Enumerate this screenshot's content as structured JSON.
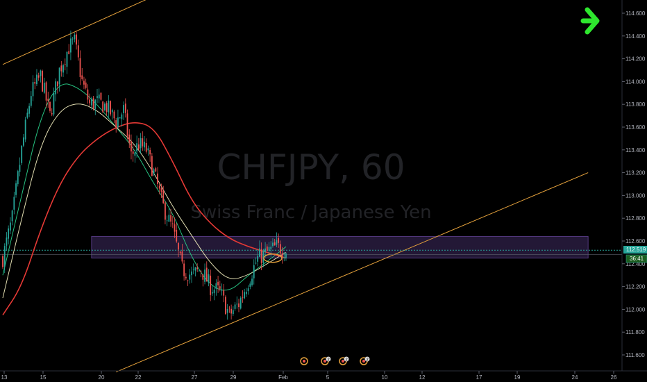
{
  "watermark": {
    "symbol": "CHFJPY, 60",
    "description": "Swiss Franc / Japanese Yen"
  },
  "price_badge": {
    "price": "112.519",
    "countdown": "36:41"
  },
  "colors": {
    "background": "#000000",
    "bull": "#26a69a",
    "bear": "#ef5350",
    "ma_fast": "#26c281",
    "ma_mid": "#e0dcb0",
    "ma_slow": "#e53935",
    "trend_lines": "#e6a23c",
    "zone": "#7e57c2",
    "price_line": "#26a69a",
    "arrow": "#2ee62e"
  },
  "icons": [
    "green-arrow-right-icon",
    "earnings-event-icon"
  ],
  "chart_data": {
    "type": "candlestick",
    "title": "CHFJPY, 60",
    "subtitle": "Swiss Franc / Japanese Yen",
    "ylim": [
      111.5,
      114.7
    ],
    "y_ticks": [
      "111.600",
      "111.800",
      "112.000",
      "112.200",
      "112.400",
      "112.600",
      "112.800",
      "113.000",
      "113.200",
      "113.400",
      "113.600",
      "113.800",
      "114.000",
      "114.200",
      "114.400",
      "114.600"
    ],
    "x_ticks": [
      "13",
      "15",
      "20",
      "22",
      "27",
      "29",
      "Feb",
      "5",
      "10",
      "12",
      "17",
      "19",
      "24",
      "26"
    ],
    "last_price": 112.519,
    "grid": false,
    "anchors": [
      [
        0,
        112.45
      ],
      [
        5,
        112.8
      ],
      [
        10,
        113.4
      ],
      [
        15,
        113.9
      ],
      [
        20,
        114.05
      ],
      [
        25,
        113.7
      ],
      [
        30,
        114.1
      ],
      [
        35,
        114.3
      ],
      [
        38,
        114.35
      ],
      [
        42,
        114.0
      ],
      [
        46,
        113.8
      ],
      [
        50,
        113.82
      ],
      [
        55,
        113.78
      ],
      [
        60,
        113.65
      ],
      [
        64,
        113.75
      ],
      [
        68,
        113.35
      ],
      [
        72,
        113.45
      ],
      [
        76,
        113.4
      ],
      [
        80,
        113.2
      ],
      [
        85,
        112.9
      ],
      [
        90,
        112.7
      ],
      [
        95,
        112.35
      ],
      [
        100,
        112.3
      ],
      [
        105,
        112.35
      ],
      [
        110,
        112.2
      ],
      [
        115,
        112.15
      ],
      [
        120,
        111.95
      ],
      [
        125,
        112.05
      ],
      [
        130,
        112.25
      ],
      [
        135,
        112.45
      ],
      [
        140,
        112.5
      ],
      [
        145,
        112.55
      ],
      [
        150,
        112.52
      ]
    ],
    "moving_averages": [
      {
        "color": "ma_fast",
        "points": [
          [
            0,
            112.3
          ],
          [
            10,
            113.0
          ],
          [
            20,
            113.7
          ],
          [
            30,
            114.0
          ],
          [
            40,
            113.95
          ],
          [
            50,
            113.8
          ],
          [
            60,
            113.6
          ],
          [
            70,
            113.4
          ],
          [
            80,
            113.1
          ],
          [
            90,
            112.85
          ],
          [
            100,
            112.45
          ],
          [
            110,
            112.2
          ],
          [
            120,
            112.15
          ],
          [
            130,
            112.3
          ],
          [
            140,
            112.42
          ],
          [
            150,
            112.55
          ]
        ]
      },
      {
        "color": "ma_mid",
        "points": [
          [
            0,
            112.1
          ],
          [
            10,
            112.8
          ],
          [
            20,
            113.45
          ],
          [
            30,
            113.75
          ],
          [
            40,
            113.82
          ],
          [
            50,
            113.75
          ],
          [
            60,
            113.6
          ],
          [
            70,
            113.45
          ],
          [
            80,
            113.2
          ],
          [
            90,
            112.9
          ],
          [
            100,
            112.65
          ],
          [
            110,
            112.4
          ],
          [
            120,
            112.25
          ],
          [
            130,
            112.3
          ],
          [
            140,
            112.4
          ],
          [
            150,
            112.5
          ]
        ]
      },
      {
        "color": "ma_slow",
        "points": [
          [
            0,
            111.95
          ],
          [
            10,
            112.2
          ],
          [
            20,
            112.7
          ],
          [
            30,
            113.1
          ],
          [
            40,
            113.35
          ],
          [
            50,
            113.5
          ],
          [
            60,
            113.6
          ],
          [
            70,
            113.65
          ],
          [
            80,
            113.6
          ],
          [
            90,
            113.3
          ],
          [
            100,
            112.95
          ],
          [
            110,
            112.75
          ],
          [
            120,
            112.62
          ],
          [
            130,
            112.55
          ],
          [
            140,
            112.5
          ],
          [
            150,
            112.45
          ]
        ]
      }
    ],
    "bars_total": 150,
    "trend_lines": [
      {
        "from": [
          0,
          114.15
        ],
        "to": [
          80,
          114.75
        ]
      },
      {
        "from": [
          60,
          111.45
        ],
        "to": [
          310,
          113.2
        ]
      }
    ],
    "zone": {
      "from_bar": 47,
      "to_bar": 310,
      "y_top": 112.64,
      "y_bottom": 112.45
    },
    "ellipse": {
      "bar": 143,
      "price": 112.48
    },
    "event_markers": [
      {
        "bar": 145,
        "count": ""
      },
      {
        "bar": 155,
        "count": "2"
      },
      {
        "bar": 165,
        "count": "2"
      },
      {
        "bar": 185,
        "count": "2"
      }
    ]
  }
}
